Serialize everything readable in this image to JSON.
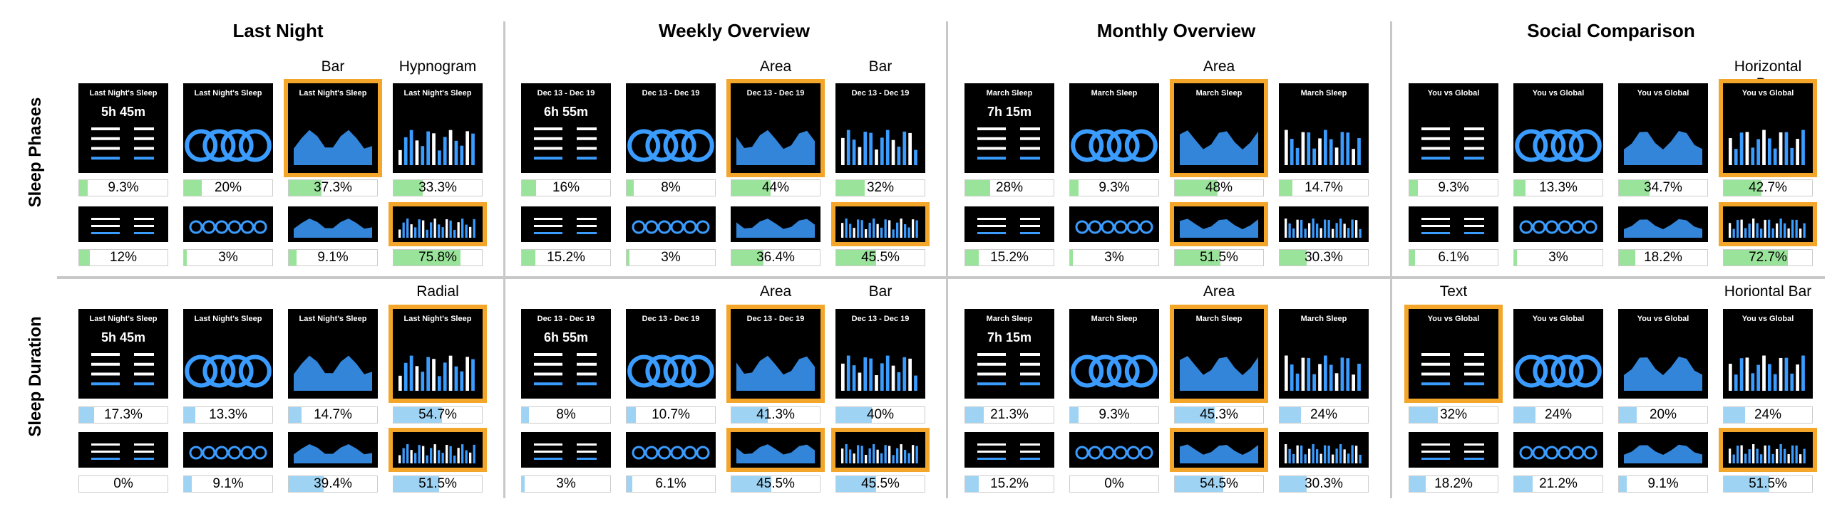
{
  "columns": [
    {
      "title": "Last Night"
    },
    {
      "title": "Weekly Overview"
    },
    {
      "title": "Monthly Overview"
    },
    {
      "title": "Social Comparison"
    }
  ],
  "rows": [
    {
      "title": "Sleep Phases"
    },
    {
      "title": "Sleep Duration"
    }
  ],
  "chart_labels": {
    "phases": [
      "",
      "",
      "Bar",
      "Hypnogram",
      "",
      "",
      "Area",
      "Bar",
      "",
      "",
      "Area",
      "",
      "",
      "",
      "",
      "Horizontal Bar"
    ],
    "duration": [
      "",
      "",
      "",
      "Radial",
      "",
      "",
      "Area",
      "Bar",
      "",
      "",
      "Area",
      "",
      "Text",
      "",
      "",
      "Horiontal Bar"
    ]
  },
  "thumb_titles": {
    "last_night": "Last Night's Sleep",
    "weekly": "Dec 13 - Dec 19",
    "monthly": "March Sleep",
    "social": "You vs Global",
    "value_ln": "5h 45m",
    "value_wk": "6h 55m",
    "value_mo": "7h 15m"
  },
  "percentages": {
    "phases_big": [
      "9.3%",
      "20%",
      "37.3%",
      "33.3%",
      "16%",
      "8%",
      "44%",
      "32%",
      "28%",
      "9.3%",
      "48%",
      "14.7%",
      "9.3%",
      "13.3%",
      "34.7%",
      "42.7%"
    ],
    "phases_small": [
      "12%",
      "3%",
      "9.1%",
      "75.8%",
      "15.2%",
      "3%",
      "36.4%",
      "45.5%",
      "15.2%",
      "3%",
      "51.5%",
      "30.3%",
      "6.1%",
      "3%",
      "18.2%",
      "72.7%"
    ],
    "duration_big": [
      "17.3%",
      "13.3%",
      "14.7%",
      "54.7%",
      "8%",
      "10.7%",
      "41.3%",
      "40%",
      "21.3%",
      "9.3%",
      "45.3%",
      "24%",
      "32%",
      "24%",
      "20%",
      "24%"
    ],
    "duration_small": [
      "0%",
      "9.1%",
      "39.4%",
      "51.5%",
      "3%",
      "6.1%",
      "45.5%",
      "45.5%",
      "15.2%",
      "0%",
      "54.5%",
      "30.3%",
      "18.2%",
      "21.2%",
      "9.1%",
      "51.5%"
    ]
  },
  "fractions": {
    "phases_big": [
      0.093,
      0.2,
      0.373,
      0.333,
      0.16,
      0.08,
      0.44,
      0.32,
      0.28,
      0.093,
      0.48,
      0.147,
      0.093,
      0.133,
      0.347,
      0.427
    ],
    "phases_small": [
      0.12,
      0.03,
      0.091,
      0.758,
      0.152,
      0.03,
      0.364,
      0.455,
      0.152,
      0.03,
      0.515,
      0.303,
      0.061,
      0.03,
      0.182,
      0.727
    ],
    "duration_big": [
      0.173,
      0.133,
      0.147,
      0.547,
      0.08,
      0.107,
      0.413,
      0.4,
      0.213,
      0.093,
      0.453,
      0.24,
      0.32,
      0.24,
      0.2,
      0.24
    ],
    "duration_small": [
      0.0,
      0.091,
      0.394,
      0.515,
      0.03,
      0.061,
      0.455,
      0.455,
      0.152,
      0.0,
      0.545,
      0.303,
      0.182,
      0.212,
      0.091,
      0.515
    ]
  },
  "highlighted": {
    "phases_big": [
      2,
      6,
      10,
      15
    ],
    "phases_small": [
      3,
      7,
      10,
      15
    ],
    "duration_big": [
      3,
      6,
      10,
      12
    ],
    "duration_small": [
      3,
      6,
      7,
      10,
      15
    ]
  },
  "colors": {
    "phases_fill": "#9ae39a",
    "duration_fill": "#9fd3f3",
    "highlight": "#f4a62a",
    "accent": "#3b9cff"
  }
}
